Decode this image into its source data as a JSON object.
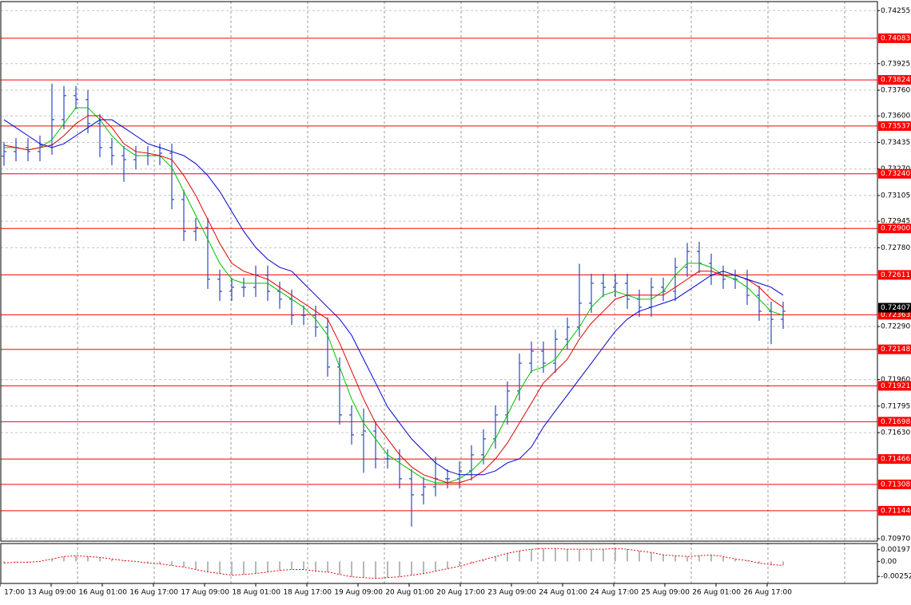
{
  "chart_data": {
    "type": "ohlc",
    "color": "#2b47c8",
    "open": [
      0.7335,
      0.73378,
      0.73403,
      0.73378,
      0.73418,
      0.73577,
      0.73726,
      0.73701,
      0.73552,
      0.73403,
      0.73353,
      0.73328,
      0.73353,
      0.73353,
      0.73368,
      0.7308,
      0.72882,
      0.72906,
      0.72584,
      0.72509,
      0.72534,
      0.72534,
      0.72609,
      0.72509,
      0.7246,
      0.7236,
      0.7236,
      0.72286,
      0.72038,
      0.7174,
      0.71616,
      0.7164,
      0.71467,
      0.71467,
      0.71343,
      0.71243,
      0.71293,
      0.71343,
      0.71343,
      0.71392,
      0.71492,
      0.71591,
      0.7174,
      0.71889,
      0.72062,
      0.72137,
      0.72062,
      0.72211,
      0.72286,
      0.72435,
      0.72559,
      0.72534,
      0.72559,
      0.7246,
      0.7241,
      0.72534,
      0.72509,
      0.72658,
      0.72757,
      0.72683,
      0.72609,
      0.72584,
      0.72584,
      0.72484,
      0.72385,
      0.72335
    ],
    "high": [
      0.73438,
      0.73463,
      0.73463,
      0.73478,
      0.738,
      0.73786,
      0.73786,
      0.73761,
      0.73612,
      0.73463,
      0.73413,
      0.73413,
      0.73413,
      0.73428,
      0.73428,
      0.7314,
      0.72966,
      0.72966,
      0.72644,
      0.72594,
      0.72594,
      0.72669,
      0.72669,
      0.72569,
      0.7252,
      0.7242,
      0.7242,
      0.72346,
      0.72098,
      0.718,
      0.7178,
      0.717,
      0.71527,
      0.71527,
      0.71403,
      0.71353,
      0.7148,
      0.71403,
      0.71452,
      0.71552,
      0.71651,
      0.718,
      0.71949,
      0.72122,
      0.72197,
      0.72197,
      0.72271,
      0.72346,
      0.7268,
      0.72619,
      0.72619,
      0.72619,
      0.72619,
      0.7252,
      0.72594,
      0.72594,
      0.72718,
      0.7281,
      0.72817,
      0.72743,
      0.72669,
      0.72644,
      0.72644,
      0.72544,
      0.72445,
      0.72445
    ],
    "low": [
      0.7329,
      0.73318,
      0.73318,
      0.73318,
      0.73358,
      0.73517,
      0.73641,
      0.73492,
      0.73343,
      0.73293,
      0.7319,
      0.73268,
      0.73293,
      0.73293,
      0.7302,
      0.72822,
      0.72822,
      0.72524,
      0.72449,
      0.72449,
      0.72474,
      0.72474,
      0.72449,
      0.724,
      0.723,
      0.723,
      0.72226,
      0.71978,
      0.7168,
      0.71556,
      0.7138,
      0.71407,
      0.71407,
      0.71283,
      0.71045,
      0.71183,
      0.71233,
      0.71283,
      0.71283,
      0.71332,
      0.71432,
      0.71531,
      0.7168,
      0.71829,
      0.72002,
      0.72002,
      0.72002,
      0.72151,
      0.72226,
      0.72375,
      0.72474,
      0.72474,
      0.724,
      0.7235,
      0.7235,
      0.72449,
      0.72449,
      0.72598,
      0.72623,
      0.72549,
      0.72524,
      0.72524,
      0.72424,
      0.72325,
      0.7218,
      0.72275
    ],
    "close": [
      0.73378,
      0.73403,
      0.73378,
      0.73418,
      0.73577,
      0.73726,
      0.73701,
      0.73552,
      0.73403,
      0.73353,
      0.73328,
      0.73353,
      0.73353,
      0.73368,
      0.7308,
      0.72882,
      0.72906,
      0.72584,
      0.72509,
      0.72534,
      0.72534,
      0.72609,
      0.72509,
      0.7246,
      0.7236,
      0.7236,
      0.72286,
      0.72038,
      0.7174,
      0.71616,
      0.7164,
      0.71467,
      0.71467,
      0.71343,
      0.71243,
      0.71293,
      0.71343,
      0.71343,
      0.71392,
      0.71492,
      0.71591,
      0.7174,
      0.71889,
      0.72062,
      0.72137,
      0.72062,
      0.72211,
      0.72286,
      0.72435,
      0.72559,
      0.72534,
      0.72559,
      0.7246,
      0.7241,
      0.72534,
      0.72509,
      0.72658,
      0.72757,
      0.72683,
      0.72609,
      0.72584,
      0.72584,
      0.72484,
      0.72385,
      0.72335,
      0.72385
    ],
    "moving_averages": [
      {
        "color": "#00c000",
        "values": [
          0.73403,
          0.73403,
          0.73388,
          0.73403,
          0.73452,
          0.73552,
          0.73651,
          0.73651,
          0.73576,
          0.73477,
          0.73403,
          0.73353,
          0.73353,
          0.73353,
          0.73279,
          0.7313,
          0.72981,
          0.72832,
          0.72683,
          0.72584,
          0.72559,
          0.72559,
          0.72559,
          0.72509,
          0.7246,
          0.7241,
          0.72336,
          0.72236,
          0.72038,
          0.71839,
          0.7169,
          0.71591,
          0.71492,
          0.71442,
          0.71392,
          0.71343,
          0.71318,
          0.71318,
          0.71343,
          0.71392,
          0.71467,
          0.71591,
          0.7174,
          0.71889,
          0.72013,
          0.72038,
          0.72087,
          0.72187,
          0.72286,
          0.7241,
          0.72485,
          0.72509,
          0.72485,
          0.7246,
          0.7246,
          0.72509,
          0.72609,
          0.72683,
          0.72683,
          0.72658,
          0.72609,
          0.72584,
          0.72534,
          0.7246,
          0.72385,
          0.7236
        ]
      },
      {
        "color": "#e00000",
        "values": [
          0.73418,
          0.73403,
          0.73388,
          0.73403,
          0.73418,
          0.73477,
          0.73552,
          0.73601,
          0.73601,
          0.73527,
          0.73427,
          0.73378,
          0.73368,
          0.73353,
          0.73328,
          0.73229,
          0.73105,
          0.72956,
          0.72807,
          0.72683,
          0.72634,
          0.72609,
          0.72584,
          0.72534,
          0.72485,
          0.72435,
          0.72385,
          0.72336,
          0.72187,
          0.72013,
          0.71839,
          0.7169,
          0.71591,
          0.71492,
          0.71417,
          0.71368,
          0.71343,
          0.71318,
          0.71318,
          0.71343,
          0.71392,
          0.71467,
          0.71566,
          0.7169,
          0.71814,
          0.71939,
          0.72013,
          0.72087,
          0.72211,
          0.72311,
          0.72385,
          0.7246,
          0.72485,
          0.72485,
          0.72485,
          0.72485,
          0.72534,
          0.72584,
          0.72634,
          0.72634,
          0.72609,
          0.72609,
          0.72584,
          0.72534,
          0.7246,
          0.7241
        ]
      },
      {
        "color": "#0000d0",
        "values": [
          0.73576,
          0.73527,
          0.73477,
          0.73427,
          0.73403,
          0.73427,
          0.73477,
          0.73527,
          0.73576,
          0.73576,
          0.73527,
          0.73477,
          0.73427,
          0.73403,
          0.73378,
          0.73353,
          0.73303,
          0.73229,
          0.7313,
          0.73006,
          0.72882,
          0.72782,
          0.72708,
          0.72658,
          0.72634,
          0.72559,
          0.72485,
          0.7241,
          0.72336,
          0.72236,
          0.72087,
          0.71939,
          0.7179,
          0.7169,
          0.71591,
          0.71516,
          0.71442,
          0.71392,
          0.71368,
          0.71368,
          0.71368,
          0.71392,
          0.71442,
          0.71467,
          0.71541,
          0.71665,
          0.71765,
          0.71864,
          0.71963,
          0.72062,
          0.72162,
          0.72261,
          0.72336,
          0.72385,
          0.7241,
          0.72435,
          0.7246,
          0.72509,
          0.72559,
          0.72609,
          0.72634,
          0.72609,
          0.72584,
          0.72559,
          0.72534,
          0.72485
        ]
      }
    ],
    "ylim": [
      0.70955,
      0.74311
    ],
    "yticks": [
      0.74255,
      0.73925,
      {
        "value": 0.7376,
        "label": "0.73760"
      },
      {
        "value": 0.736,
        "label": "0.73600"
      },
      0.73435,
      {
        "value": 0.7327,
        "label": "0.73270"
      },
      0.73105,
      0.72945,
      {
        "value": 0.7278,
        "label": "0.72780"
      },
      {
        "value": 0.7229,
        "label": "0.72290"
      },
      {
        "value": 0.7196,
        "label": "0.71960"
      },
      0.71795,
      {
        "value": 0.7163,
        "label": "0.71630"
      },
      {
        "value": 0.7097,
        "label": "0.70970"
      }
    ],
    "grid": true,
    "levels": {
      "color": "#ff0000",
      "values": [
        0.74083,
        0.73824,
        0.73537,
        {
          "value": 0.7324,
          "label": "0.73240"
        },
        {
          "value": 0.729,
          "label": "0.72900"
        },
        0.72611,
        0.72363,
        0.72148,
        0.71921,
        0.71698,
        0.71466,
        0.71308,
        0.71144
      ]
    },
    "last_price": 0.72407,
    "xlabels": [
      "17:00",
      "13 Aug 09:00",
      "16 Aug 01:00",
      "16 Aug 17:00",
      "17 Aug 09:00",
      "18 Aug 01:00",
      "18 Aug 17:00",
      "19 Aug 09:00",
      "20 Aug 01:00",
      "20 Aug 17:00",
      "23 Aug 09:00",
      "24 Aug 01:00",
      "24 Aug 17:00",
      "25 Aug 09:00",
      "26 Aug 01:00",
      "26 Aug 17:00"
    ],
    "oscillator": {
      "type": "histogram",
      "color": "#b8b8b8",
      "line_color": "#e00000",
      "values": [
        -0.00027,
        -0.00014,
        -0.00014,
        0,
        0.00041,
        0.00082,
        0.00095,
        0.00082,
        0.00068,
        0.00041,
        0.00014,
        0,
        -0.00027,
        -0.00041,
        -0.00068,
        -0.00095,
        -0.00136,
        -0.00177,
        -0.00204,
        -0.00231,
        -0.00218,
        -0.00204,
        -0.00177,
        -0.0015,
        -0.00136,
        -0.00136,
        -0.00163,
        -0.00177,
        -0.00218,
        -0.00258,
        -0.00272,
        -0.00286,
        -0.00272,
        -0.00258,
        -0.00231,
        -0.00204,
        -0.00163,
        -0.00122,
        -0.00082,
        -0.00027,
        0.00027,
        0.00082,
        0.00136,
        0.00177,
        0.00204,
        0.00218,
        0.00218,
        0.00204,
        0.00204,
        0.00204,
        0.00204,
        0.00218,
        0.00204,
        0.00177,
        0.0015,
        0.00109,
        0.00095,
        0.00082,
        0.00095,
        0.00109,
        0.00082,
        0.00041,
        0.00014,
        -0.00027,
        -0.00054,
        -0.00068
      ],
      "ylim": [
        -0.0037,
        0.003
      ],
      "yticks": [
        0.001971,
        {
          "value": 0,
          "label": "0.00"
        },
        -0.002525
      ]
    }
  }
}
